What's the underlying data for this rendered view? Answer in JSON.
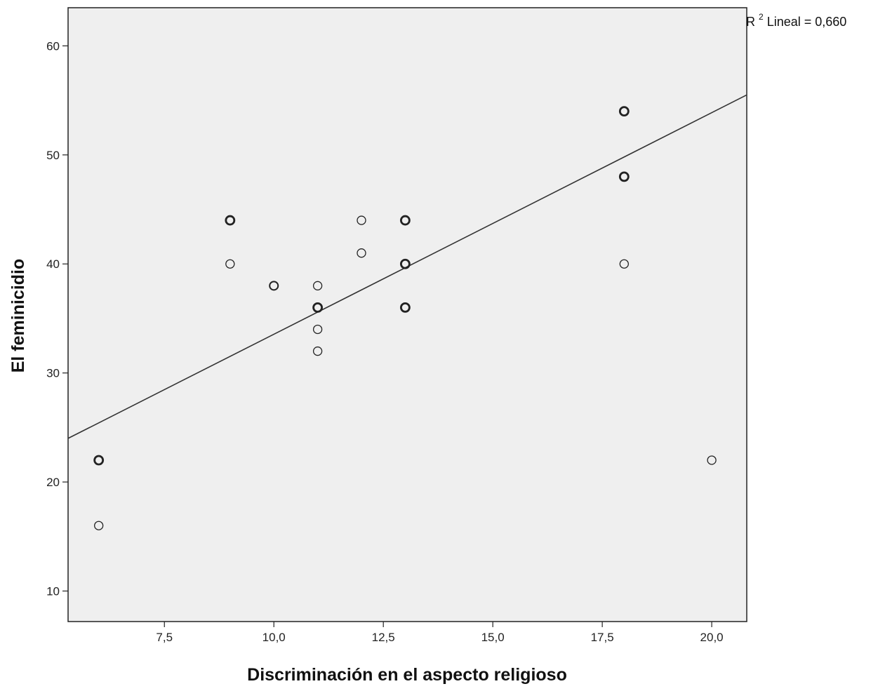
{
  "chart_data": {
    "type": "scatter",
    "xlabel": "Discriminación en el aspecto religioso",
    "ylabel": "El feminicidio",
    "xlim": [
      5.3,
      20.8
    ],
    "ylim": [
      7.2,
      63.5
    ],
    "x_ticks": [
      7.5,
      10.0,
      12.5,
      15.0,
      17.5,
      20.0
    ],
    "x_tick_labels": [
      "7,5",
      "10,0",
      "12,5",
      "15,0",
      "17,5",
      "20,0"
    ],
    "y_ticks": [
      10,
      20,
      30,
      40,
      50,
      60
    ],
    "y_tick_labels": [
      "10",
      "20",
      "30",
      "40",
      "50",
      "60"
    ],
    "grid": false,
    "plot_background": "#efefef",
    "marker": "open-circle",
    "points": [
      {
        "x": 6,
        "y": 22,
        "weight": "heavy"
      },
      {
        "x": 6,
        "y": 16,
        "weight": "light"
      },
      {
        "x": 9,
        "y": 44,
        "weight": "heavy"
      },
      {
        "x": 9,
        "y": 40,
        "weight": "light"
      },
      {
        "x": 10,
        "y": 38,
        "weight": "medium"
      },
      {
        "x": 11,
        "y": 38,
        "weight": "light"
      },
      {
        "x": 11,
        "y": 36,
        "weight": "heavy"
      },
      {
        "x": 11,
        "y": 34,
        "weight": "light"
      },
      {
        "x": 11,
        "y": 32,
        "weight": "light"
      },
      {
        "x": 12,
        "y": 44,
        "weight": "light"
      },
      {
        "x": 12,
        "y": 41,
        "weight": "light"
      },
      {
        "x": 13,
        "y": 44,
        "weight": "heavy"
      },
      {
        "x": 13,
        "y": 40,
        "weight": "heavy"
      },
      {
        "x": 13,
        "y": 36,
        "weight": "heavy"
      },
      {
        "x": 18,
        "y": 54,
        "weight": "heavy"
      },
      {
        "x": 18,
        "y": 48,
        "weight": "heavy"
      },
      {
        "x": 18,
        "y": 40,
        "weight": "light"
      },
      {
        "x": 20,
        "y": 22,
        "weight": "light"
      }
    ],
    "fit_line": {
      "type": "linear",
      "x": [
        5.3,
        20.8
      ],
      "y": [
        24.0,
        55.5
      ]
    },
    "annotation": {
      "base": "R",
      "superscript": "2",
      "text": " Lineal = 0,660"
    }
  }
}
